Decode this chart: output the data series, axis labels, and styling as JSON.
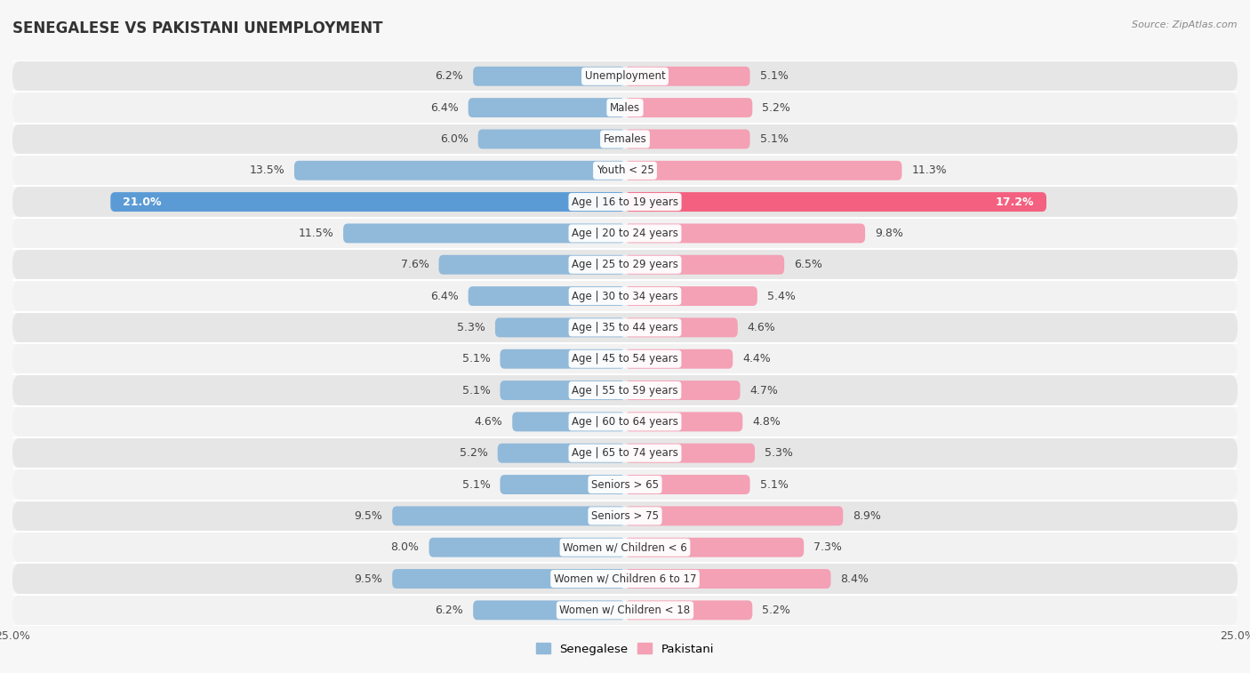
{
  "title": "SENEGALESE VS PAKISTANI UNEMPLOYMENT",
  "source": "Source: ZipAtlas.com",
  "categories": [
    "Unemployment",
    "Males",
    "Females",
    "Youth < 25",
    "Age | 16 to 19 years",
    "Age | 20 to 24 years",
    "Age | 25 to 29 years",
    "Age | 30 to 34 years",
    "Age | 35 to 44 years",
    "Age | 45 to 54 years",
    "Age | 55 to 59 years",
    "Age | 60 to 64 years",
    "Age | 65 to 74 years",
    "Seniors > 65",
    "Seniors > 75",
    "Women w/ Children < 6",
    "Women w/ Children 6 to 17",
    "Women w/ Children < 18"
  ],
  "senegalese": [
    6.2,
    6.4,
    6.0,
    13.5,
    21.0,
    11.5,
    7.6,
    6.4,
    5.3,
    5.1,
    5.1,
    4.6,
    5.2,
    5.1,
    9.5,
    8.0,
    9.5,
    6.2
  ],
  "pakistani": [
    5.1,
    5.2,
    5.1,
    11.3,
    17.2,
    9.8,
    6.5,
    5.4,
    4.6,
    4.4,
    4.7,
    4.8,
    5.3,
    5.1,
    8.9,
    7.3,
    8.4,
    5.2
  ],
  "senegalese_color": "#91b9d9",
  "pakistani_color": "#f4a0b5",
  "senegalese_highlight_color": "#5b9bd5",
  "pakistani_highlight_color": "#f46080",
  "row_bg_light": "#f2f2f2",
  "row_bg_dark": "#e6e6e6",
  "fig_bg": "#f7f7f7",
  "xlim": 25.0,
  "bar_height": 0.62,
  "label_fontsize": 9,
  "category_fontsize": 8.5,
  "title_fontsize": 12,
  "xtick_fontsize": 9
}
